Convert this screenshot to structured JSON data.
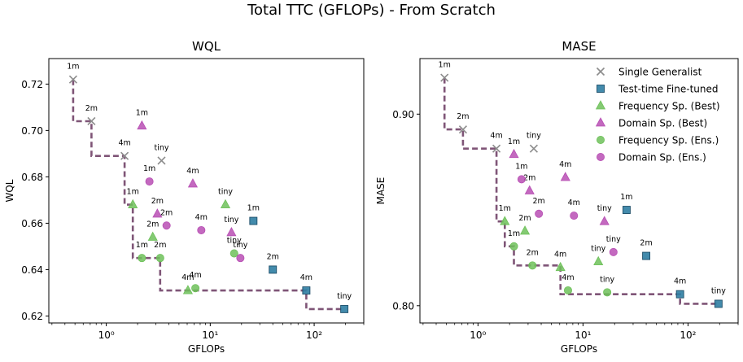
{
  "figure": {
    "title": "Total TTC (GFLOPs) - From Scratch"
  },
  "colors": {
    "generalist": "#8c8c8c",
    "finetuned": "#2f7ea3",
    "frequency": "#6ec15a",
    "domain": "#b84fb4",
    "frontier": "#7f5577"
  },
  "chart_data": [
    {
      "type": "scatter",
      "title": "WQL",
      "xlabel": "GFLOPs",
      "ylabel": "WQL",
      "xscale": "log",
      "xlim": [
        0.28,
        300
      ],
      "ylim": [
        0.617,
        0.731
      ],
      "xticks": [
        {
          "v": 1,
          "label": "10⁰"
        },
        {
          "v": 10,
          "label": "10¹"
        },
        {
          "v": 100,
          "label": "10²"
        }
      ],
      "yticks": [
        0.62,
        0.64,
        0.66,
        0.68,
        0.7,
        0.72
      ],
      "ytick_labels": [
        "0.62",
        "0.64",
        "0.66",
        "0.68",
        "0.70",
        "0.72"
      ],
      "grid": false,
      "series": [
        {
          "name": "Single Generalist",
          "marker": "x",
          "color": "#8c8c8c",
          "points": [
            {
              "x": 0.48,
              "y": 0.722,
              "label": "1m"
            },
            {
              "x": 0.72,
              "y": 0.704,
              "label": "2m"
            },
            {
              "x": 1.5,
              "y": 0.689,
              "label": "4m"
            },
            {
              "x": 3.4,
              "y": 0.687,
              "label": "tiny"
            }
          ]
        },
        {
          "name": "Test-time Fine-tuned",
          "marker": "square",
          "color": "#2f7ea3",
          "points": [
            {
              "x": 26,
              "y": 0.661,
              "label": "1m"
            },
            {
              "x": 40,
              "y": 0.64,
              "label": "2m"
            },
            {
              "x": 84,
              "y": 0.631,
              "label": "4m"
            },
            {
              "x": 195,
              "y": 0.623,
              "label": "tiny"
            }
          ]
        },
        {
          "name": "Frequency Sp. (Best)",
          "marker": "triangle",
          "color": "#6ec15a",
          "points": [
            {
              "x": 1.8,
              "y": 0.668,
              "label": "1m"
            },
            {
              "x": 2.8,
              "y": 0.654,
              "label": "2m"
            },
            {
              "x": 6.1,
              "y": 0.631,
              "label": "4m"
            },
            {
              "x": 14,
              "y": 0.668,
              "label": "tiny"
            }
          ]
        },
        {
          "name": "Domain Sp. (Best)",
          "marker": "triangle",
          "color": "#b84fb4",
          "points": [
            {
              "x": 2.2,
              "y": 0.702,
              "label": "1m"
            },
            {
              "x": 3.1,
              "y": 0.664,
              "label": "2m"
            },
            {
              "x": 6.8,
              "y": 0.677,
              "label": "4m"
            },
            {
              "x": 16,
              "y": 0.656,
              "label": "tiny"
            }
          ]
        },
        {
          "name": "Frequency Sp. (Ens.)",
          "marker": "circle",
          "color": "#6ec15a",
          "points": [
            {
              "x": 2.2,
              "y": 0.645,
              "label": "1m"
            },
            {
              "x": 3.3,
              "y": 0.645,
              "label": "2m"
            },
            {
              "x": 7.2,
              "y": 0.632,
              "label": "4m"
            },
            {
              "x": 17,
              "y": 0.647,
              "label": "tiny"
            }
          ]
        },
        {
          "name": "Domain Sp. (Ens.)",
          "marker": "circle",
          "color": "#b84fb4",
          "points": [
            {
              "x": 2.6,
              "y": 0.678,
              "label": "1m"
            },
            {
              "x": 3.8,
              "y": 0.659,
              "label": "2m"
            },
            {
              "x": 8.2,
              "y": 0.657,
              "label": "4m"
            },
            {
              "x": 19.5,
              "y": 0.645,
              "label": "tiny"
            }
          ]
        }
      ],
      "frontier": [
        [
          0.48,
          0.722
        ],
        [
          0.48,
          0.704
        ],
        [
          0.72,
          0.704
        ],
        [
          0.72,
          0.689
        ],
        [
          1.5,
          0.689
        ],
        [
          1.5,
          0.668
        ],
        [
          1.8,
          0.668
        ],
        [
          1.8,
          0.645
        ],
        [
          3.3,
          0.645
        ],
        [
          3.3,
          0.631
        ],
        [
          84,
          0.631
        ],
        [
          84,
          0.623
        ],
        [
          195,
          0.623
        ]
      ]
    },
    {
      "type": "scatter",
      "title": "MASE",
      "xlabel": "GFLOPs",
      "ylabel": "MASE",
      "xscale": "log",
      "xlim": [
        0.28,
        300
      ],
      "ylim": [
        0.791,
        0.929
      ],
      "xticks": [
        {
          "v": 1,
          "label": "10⁰"
        },
        {
          "v": 10,
          "label": "10¹"
        },
        {
          "v": 100,
          "label": "10²"
        }
      ],
      "yticks": [
        0.8,
        0.9
      ],
      "ytick_labels": [
        "0.80",
        "0.90"
      ],
      "grid": false,
      "legend": "top-right",
      "series": [
        {
          "name": "Single Generalist",
          "marker": "x",
          "color": "#8c8c8c",
          "points": [
            {
              "x": 0.48,
              "y": 0.919,
              "label": "1m"
            },
            {
              "x": 0.72,
              "y": 0.892,
              "label": "2m"
            },
            {
              "x": 1.5,
              "y": 0.882,
              "label": "4m"
            },
            {
              "x": 3.4,
              "y": 0.882,
              "label": "tiny"
            }
          ]
        },
        {
          "name": "Test-time Fine-tuned",
          "marker": "square",
          "color": "#2f7ea3",
          "points": [
            {
              "x": 26,
              "y": 0.85,
              "label": "1m"
            },
            {
              "x": 40,
              "y": 0.826,
              "label": "2m"
            },
            {
              "x": 84,
              "y": 0.806,
              "label": "4m"
            },
            {
              "x": 195,
              "y": 0.801,
              "label": "tiny"
            }
          ]
        },
        {
          "name": "Frequency Sp. (Best)",
          "marker": "triangle",
          "color": "#6ec15a",
          "points": [
            {
              "x": 1.8,
              "y": 0.844,
              "label": "1m"
            },
            {
              "x": 2.8,
              "y": 0.839,
              "label": "2m"
            },
            {
              "x": 6.1,
              "y": 0.82,
              "label": "4m"
            },
            {
              "x": 14,
              "y": 0.823,
              "label": "tiny"
            }
          ]
        },
        {
          "name": "Domain Sp. (Best)",
          "marker": "triangle",
          "color": "#b84fb4",
          "points": [
            {
              "x": 2.2,
              "y": 0.879,
              "label": "1m"
            },
            {
              "x": 3.1,
              "y": 0.86,
              "label": "2m"
            },
            {
              "x": 6.8,
              "y": 0.867,
              "label": "4m"
            },
            {
              "x": 16,
              "y": 0.844,
              "label": "tiny"
            }
          ]
        },
        {
          "name": "Frequency Sp. (Ens.)",
          "marker": "circle",
          "color": "#6ec15a",
          "points": [
            {
              "x": 2.2,
              "y": 0.831,
              "label": "1m"
            },
            {
              "x": 3.3,
              "y": 0.821,
              "label": "2m"
            },
            {
              "x": 7.2,
              "y": 0.808,
              "label": "4m"
            },
            {
              "x": 17,
              "y": 0.807,
              "label": "tiny"
            }
          ]
        },
        {
          "name": "Domain Sp. (Ens.)",
          "marker": "circle",
          "color": "#b84fb4",
          "points": [
            {
              "x": 2.6,
              "y": 0.866,
              "label": "1m"
            },
            {
              "x": 3.8,
              "y": 0.848,
              "label": "2m"
            },
            {
              "x": 8.2,
              "y": 0.847,
              "label": "4m"
            },
            {
              "x": 19.5,
              "y": 0.828,
              "label": "tiny"
            }
          ]
        }
      ],
      "frontier": [
        [
          0.48,
          0.919
        ],
        [
          0.48,
          0.892
        ],
        [
          0.72,
          0.892
        ],
        [
          0.72,
          0.882
        ],
        [
          1.5,
          0.882
        ],
        [
          1.5,
          0.844
        ],
        [
          1.8,
          0.844
        ],
        [
          1.8,
          0.831
        ],
        [
          2.2,
          0.831
        ],
        [
          2.2,
          0.821
        ],
        [
          6.1,
          0.821
        ],
        [
          6.1,
          0.806
        ],
        [
          84,
          0.806
        ],
        [
          84,
          0.801
        ],
        [
          195,
          0.801
        ]
      ]
    }
  ]
}
